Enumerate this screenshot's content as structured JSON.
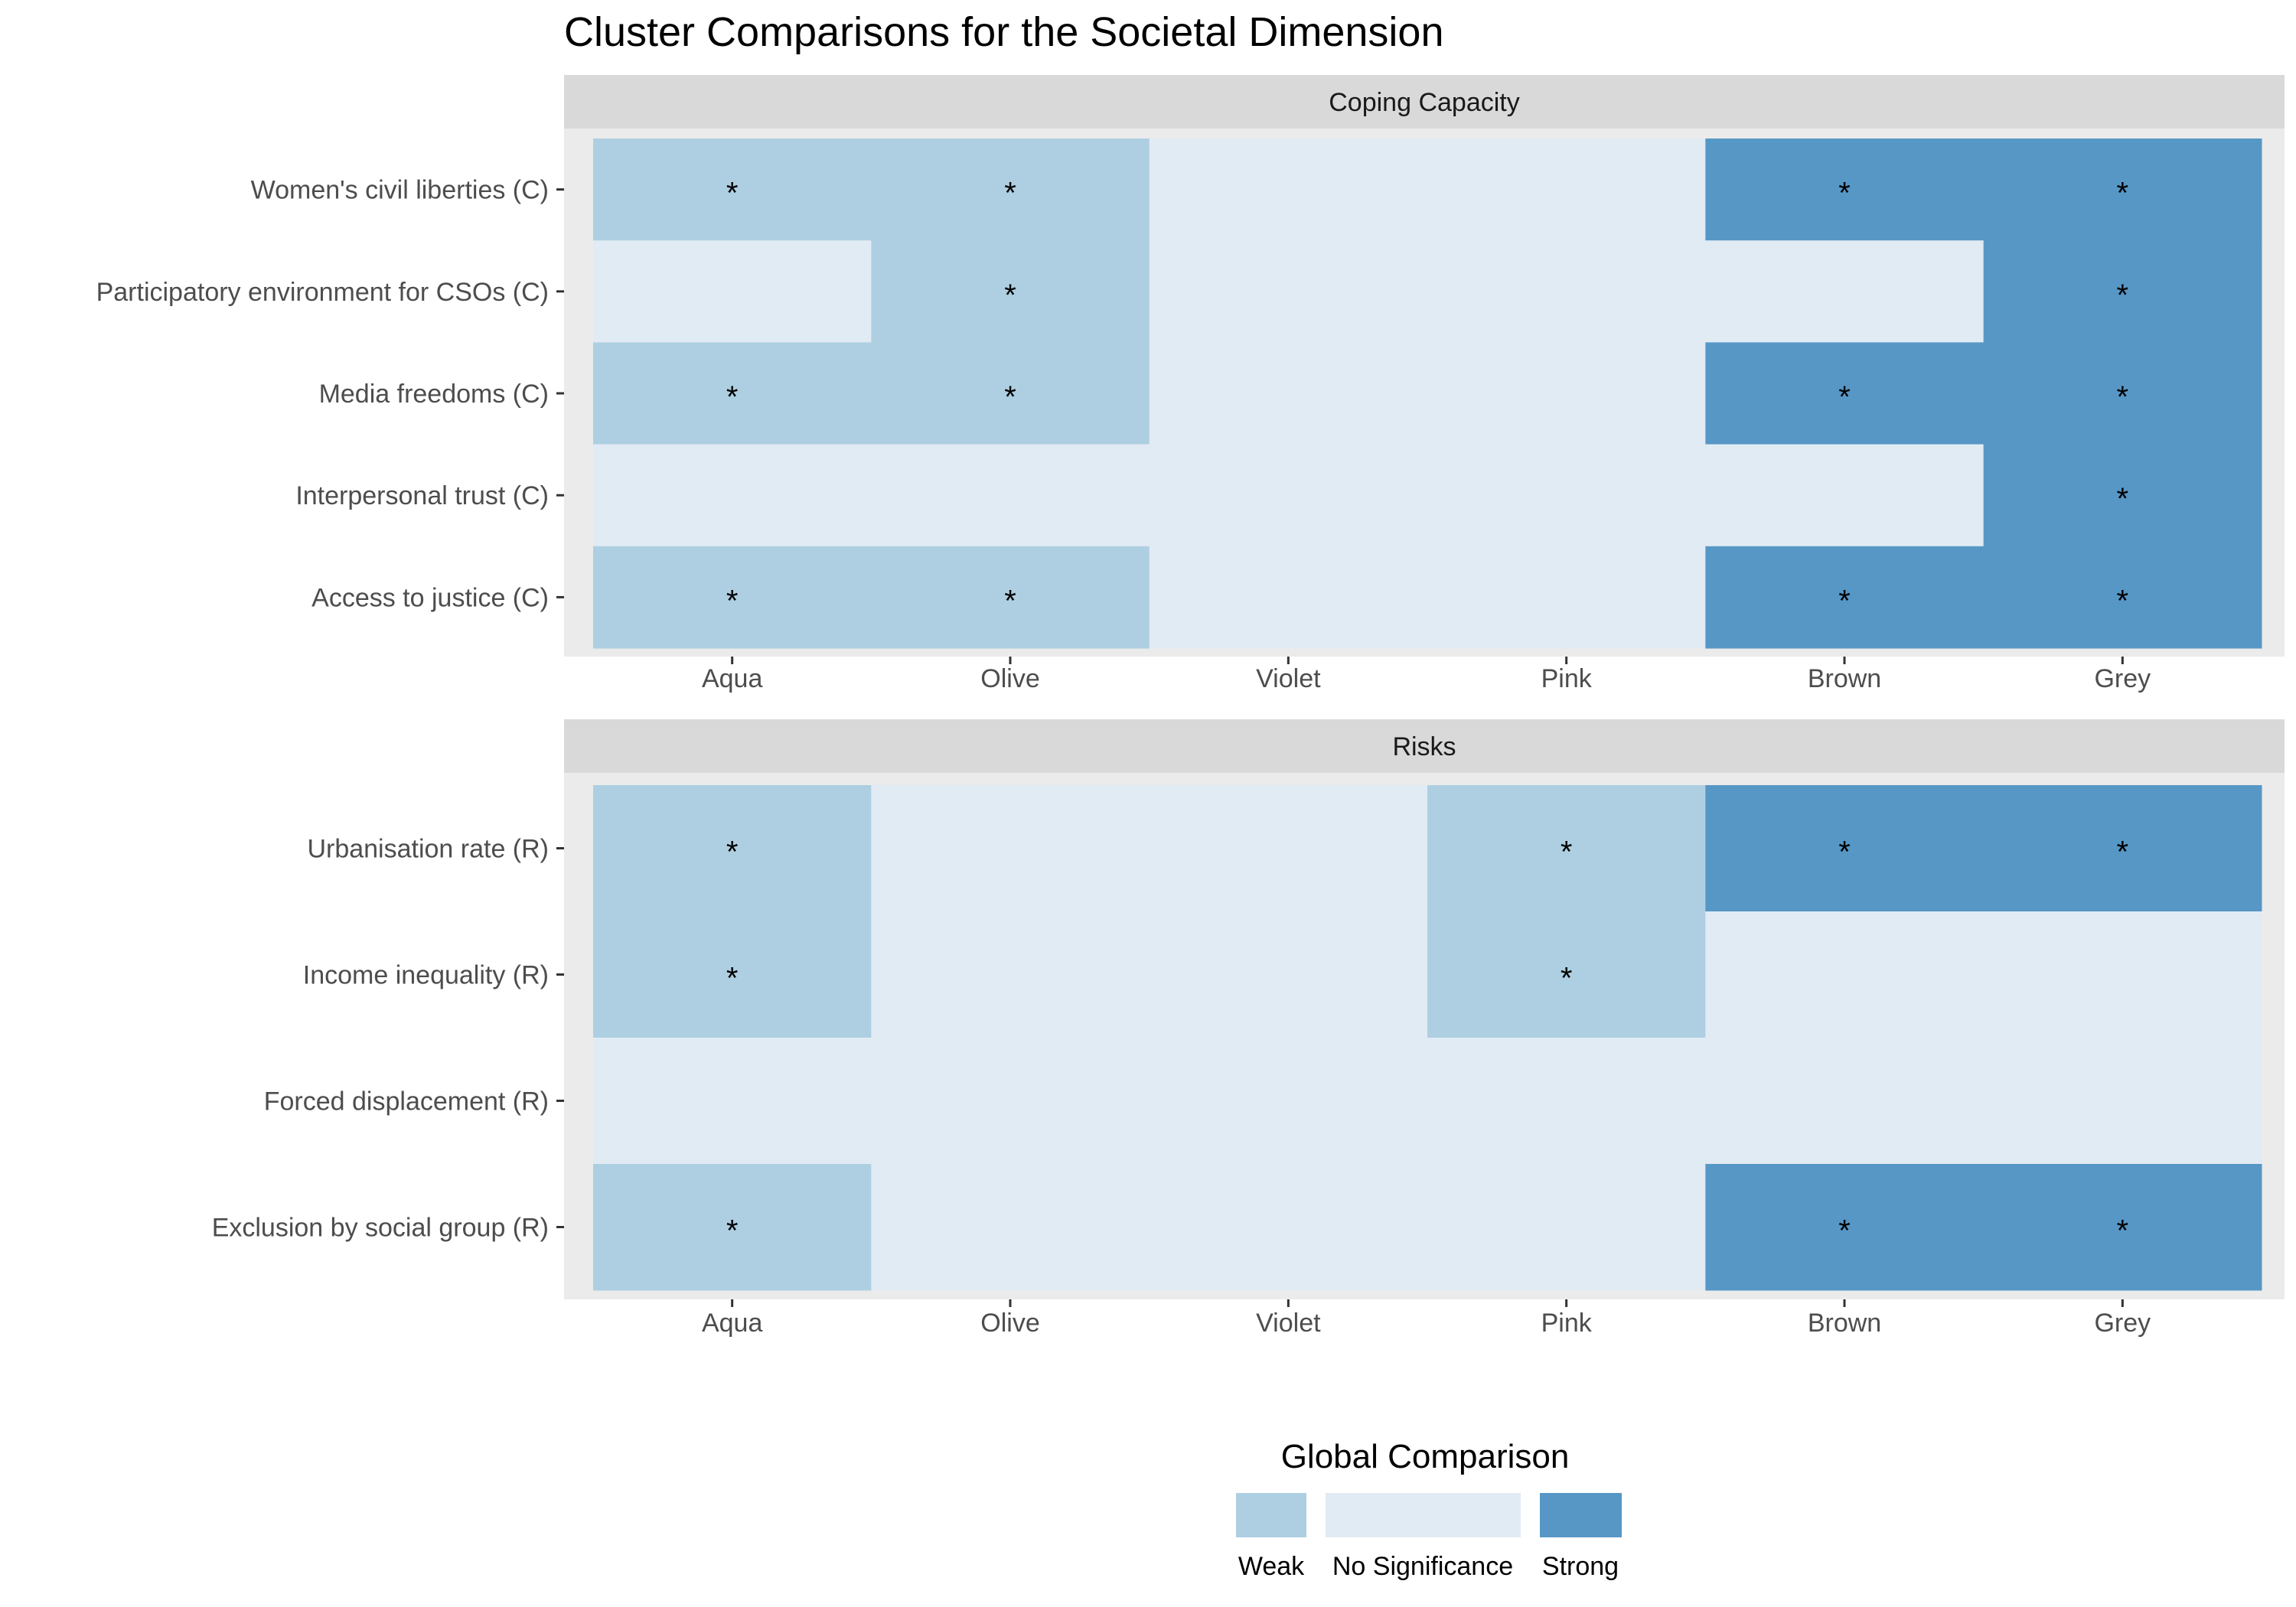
{
  "colors": {
    "Weak": "#aecfe2",
    "No Significance": "#e1ebf4",
    "Strong": "#5797c6",
    "panel_bg": "#ebebeb",
    "strip_bg": "#d9d9d9"
  },
  "chart_data": {
    "type": "heatmap",
    "title": "Cluster Comparisons for the Societal Dimension",
    "x": [
      "Aqua",
      "Olive",
      "Violet",
      "Pink",
      "Brown",
      "Grey"
    ],
    "legend": {
      "title": "Global Comparison",
      "placement": "bottom",
      "levels": [
        "Weak",
        "No Significance",
        "Strong"
      ]
    },
    "significance_marker": "*",
    "panels": [
      {
        "name": "Coping Capacity",
        "rows": [
          {
            "label": "Women's civil liberties (C)",
            "values": [
              "Weak",
              "Weak",
              "No Significance",
              "No Significance",
              "Strong",
              "Strong"
            ],
            "stars": [
              true,
              true,
              false,
              false,
              true,
              true
            ]
          },
          {
            "label": "Participatory environment for CSOs (C)",
            "values": [
              "No Significance",
              "Weak",
              "No Significance",
              "No Significance",
              "No Significance",
              "Strong"
            ],
            "stars": [
              false,
              true,
              false,
              false,
              false,
              true
            ]
          },
          {
            "label": "Media freedoms (C)",
            "values": [
              "Weak",
              "Weak",
              "No Significance",
              "No Significance",
              "Strong",
              "Strong"
            ],
            "stars": [
              true,
              true,
              false,
              false,
              true,
              true
            ]
          },
          {
            "label": "Interpersonal trust (C)",
            "values": [
              "No Significance",
              "No Significance",
              "No Significance",
              "No Significance",
              "No Significance",
              "Strong"
            ],
            "stars": [
              false,
              false,
              false,
              false,
              false,
              true
            ]
          },
          {
            "label": "Access to justice (C)",
            "values": [
              "Weak",
              "Weak",
              "No Significance",
              "No Significance",
              "Strong",
              "Strong"
            ],
            "stars": [
              true,
              true,
              false,
              false,
              true,
              true
            ]
          }
        ]
      },
      {
        "name": "Risks",
        "rows": [
          {
            "label": "Urbanisation rate (R)",
            "values": [
              "Weak",
              "No Significance",
              "No Significance",
              "Weak",
              "Strong",
              "Strong"
            ],
            "stars": [
              true,
              false,
              false,
              true,
              true,
              true
            ]
          },
          {
            "label": "Income inequality (R)",
            "values": [
              "Weak",
              "No Significance",
              "No Significance",
              "Weak",
              "No Significance",
              "No Significance"
            ],
            "stars": [
              true,
              false,
              false,
              true,
              false,
              false
            ]
          },
          {
            "label": "Forced displacement (R)",
            "values": [
              "No Significance",
              "No Significance",
              "No Significance",
              "No Significance",
              "No Significance",
              "No Significance"
            ],
            "stars": [
              false,
              false,
              false,
              false,
              false,
              false
            ]
          },
          {
            "label": "Exclusion by social group (R)",
            "values": [
              "Weak",
              "No Significance",
              "No Significance",
              "No Significance",
              "Strong",
              "Strong"
            ],
            "stars": [
              true,
              false,
              false,
              false,
              true,
              true
            ]
          }
        ]
      }
    ]
  }
}
